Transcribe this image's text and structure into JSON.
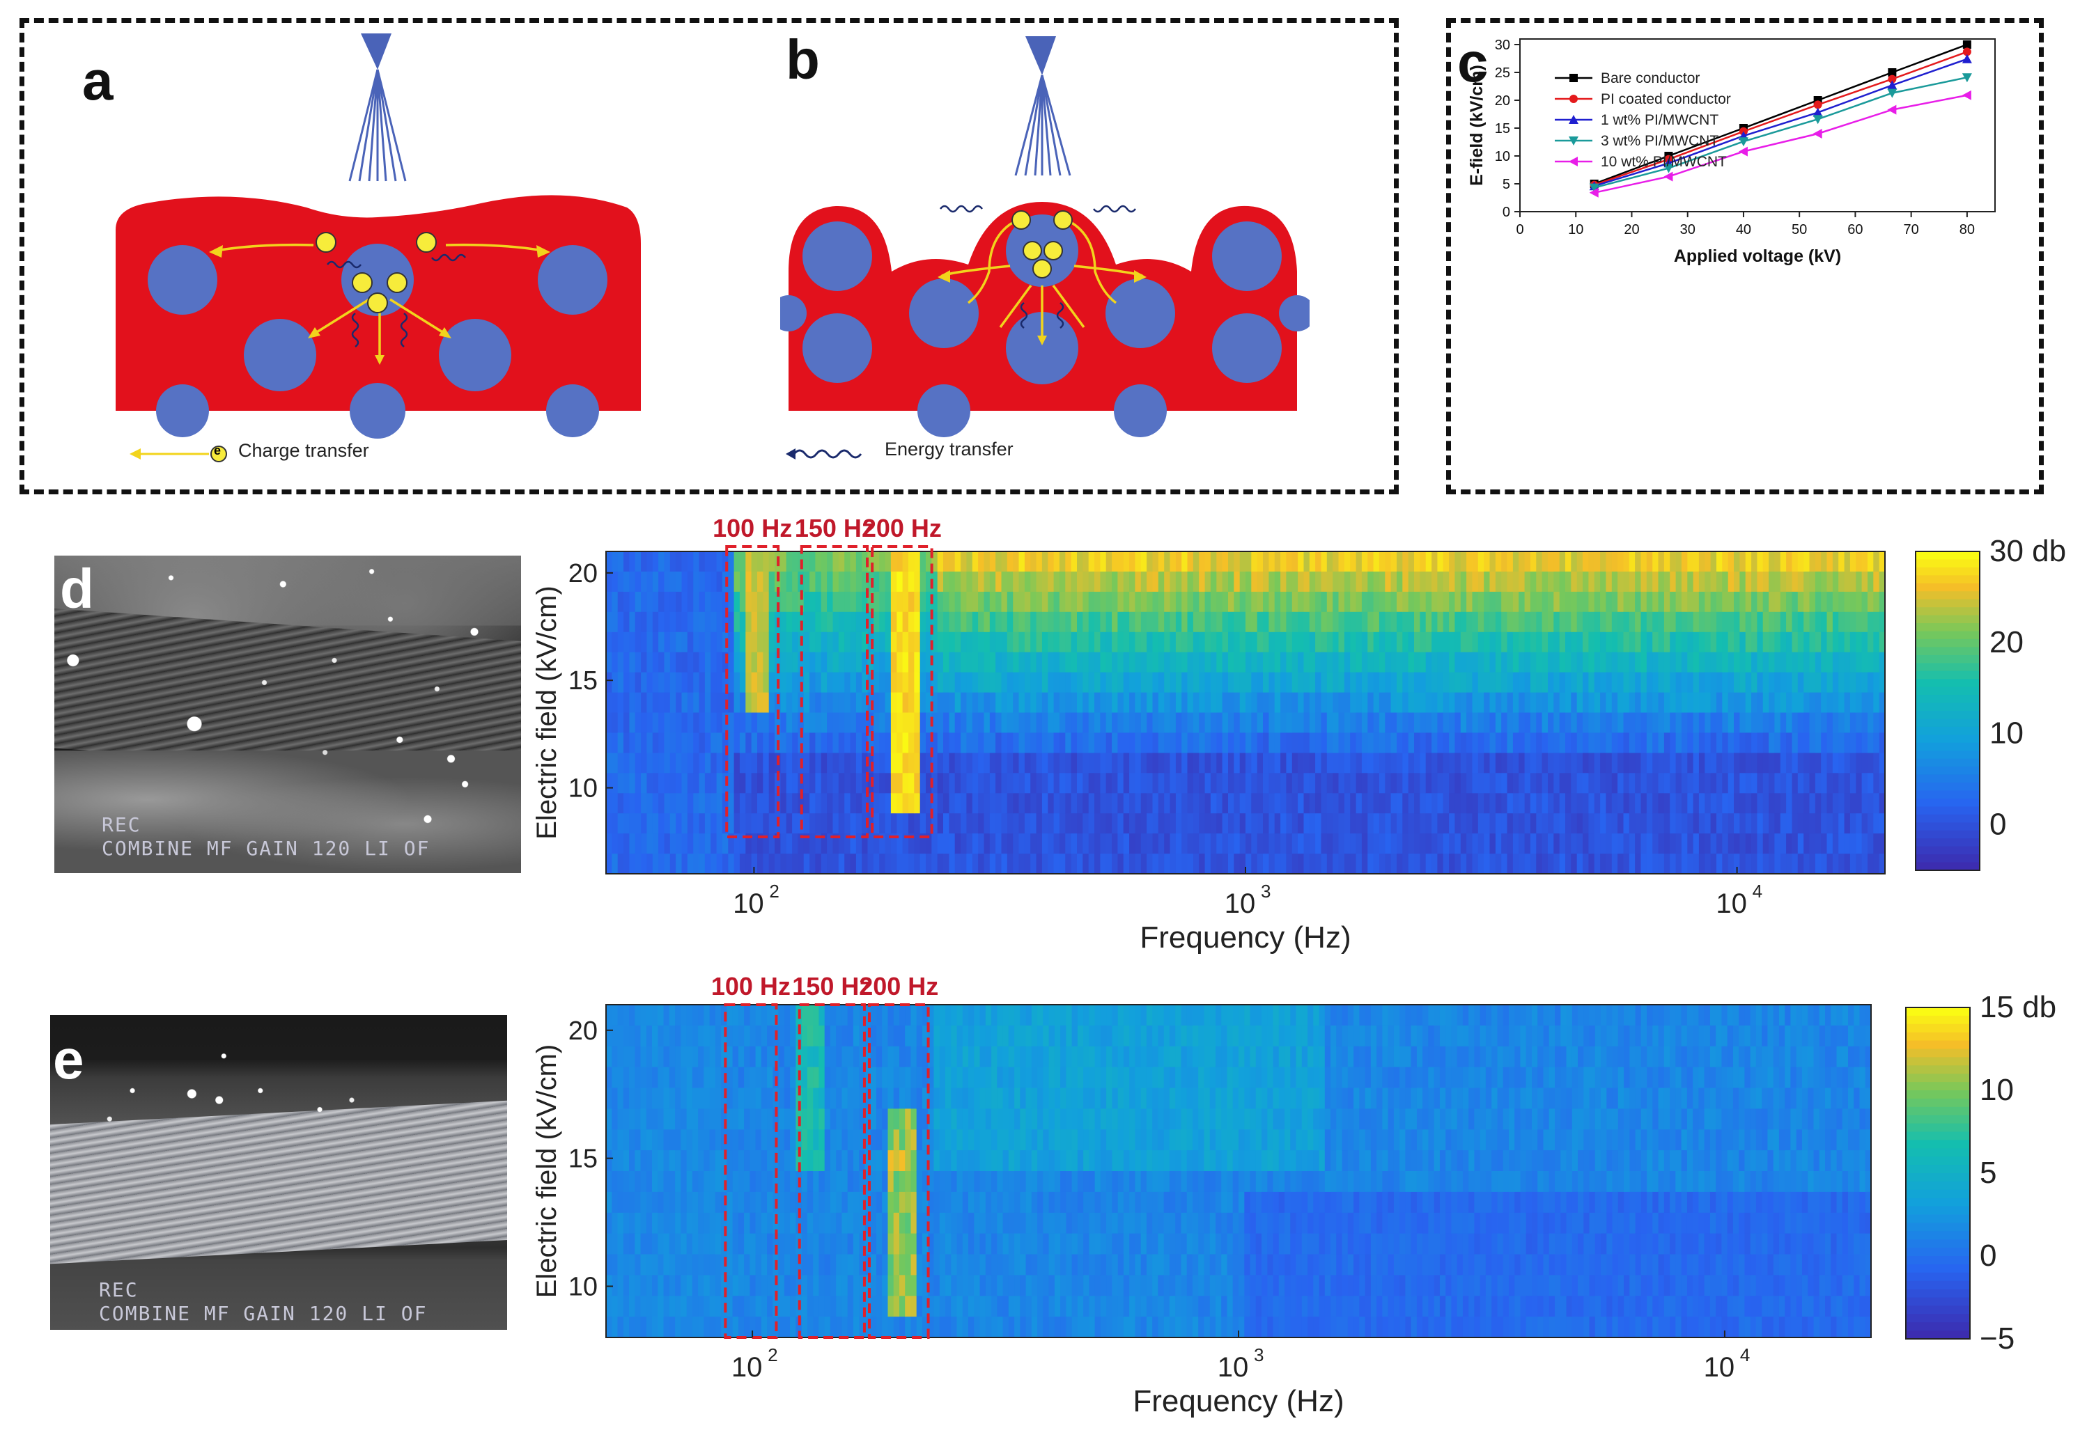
{
  "panels": {
    "a": {
      "letter": "a",
      "legend": "Charge transfer",
      "electron": "e"
    },
    "b": {
      "letter": "b",
      "legend": "Energy transfer",
      "electron": "e"
    },
    "c": {
      "letter": "c"
    },
    "d": {
      "letter": "d",
      "osd_line1": "REC",
      "osd_line2": "COMBINE MF GAIN 120 LI OF",
      "bands": [
        "100 Hz",
        "150 Hz",
        "200 Hz"
      ],
      "colorbar_ticks": [
        "30 db",
        "20",
        "10",
        "0"
      ],
      "xlabel": "Frequency (Hz)",
      "ylabel": "Electric field (kV/cm)",
      "yticks": [
        "20",
        "15",
        "10"
      ],
      "xticks": [
        "10",
        "10",
        "10"
      ],
      "xtick_exp": [
        "2",
        "3",
        "4"
      ]
    },
    "e": {
      "letter": "e",
      "osd_line1": "REC",
      "osd_line2": "COMBINE MF GAIN 120 LI OF",
      "bands": [
        "100 Hz",
        "150 Hz",
        "200 Hz"
      ],
      "colorbar_ticks": [
        "15 db",
        "10",
        "5",
        "0",
        "−5"
      ],
      "xlabel": "Frequency (Hz)",
      "ylabel": "Electric field (kV/cm)",
      "yticks": [
        "20",
        "15",
        "10"
      ],
      "xticks": [
        "10",
        "10",
        "10"
      ],
      "xtick_exp": [
        "2",
        "3",
        "4"
      ]
    }
  },
  "chart_data": [
    {
      "type": "line",
      "panel": "c",
      "title": "",
      "xlabel": "Applied voltage (kV)",
      "ylabel": "E-field (kV/cm)",
      "xlim": [
        0,
        85
      ],
      "ylim": [
        0,
        31
      ],
      "xticks": [
        0,
        10,
        20,
        30,
        40,
        50,
        60,
        70,
        80
      ],
      "yticks": [
        0,
        5,
        10,
        15,
        20,
        25,
        30
      ],
      "x": [
        13.3,
        26.6,
        40,
        53.3,
        66.6,
        80
      ],
      "series": [
        {
          "name": "Bare conductor",
          "color": "#000000",
          "marker": "square",
          "values": [
            5.0,
            10.0,
            15.0,
            20.0,
            25.0,
            30.0
          ]
        },
        {
          "name": "PI coated conductor",
          "color": "#e41a1c",
          "marker": "circle",
          "values": [
            4.8,
            9.4,
            14.4,
            19.2,
            23.8,
            28.7
          ]
        },
        {
          "name": "1 wt% PI/MWCNT",
          "color": "#1f1fcf",
          "marker": "triangle-up",
          "values": [
            4.6,
            8.7,
            13.6,
            17.8,
            22.7,
            27.4
          ]
        },
        {
          "name": "3 wt% PI/MWCNT",
          "color": "#1a9a9a",
          "marker": "triangle-down",
          "values": [
            4.3,
            7.8,
            12.6,
            16.6,
            21.3,
            24.1
          ]
        },
        {
          "name": "10 wt% PI/MWCNT",
          "color": "#e81de8",
          "marker": "triangle-left",
          "values": [
            3.4,
            6.3,
            10.8,
            14.0,
            18.3,
            20.9
          ]
        }
      ]
    },
    {
      "type": "heatmap",
      "panel": "d",
      "xlabel": "Frequency (Hz)",
      "ylabel": "Electric field (kV/cm)",
      "xscale": "log",
      "xlim": [
        50,
        20000
      ],
      "ylim": [
        6,
        21
      ],
      "colorbar_range": [
        -5,
        30
      ],
      "colorbar_unit": "db",
      "highlighted_bands_hz": [
        100,
        150,
        200
      ]
    },
    {
      "type": "heatmap",
      "panel": "e",
      "xlabel": "Frequency (Hz)",
      "ylabel": "Electric field (kV/cm)",
      "xscale": "log",
      "xlim": [
        50,
        20000
      ],
      "ylim": [
        8,
        21
      ],
      "colorbar_range": [
        -5,
        15
      ],
      "colorbar_unit": "db",
      "highlighted_bands_hz": [
        100,
        150,
        200
      ]
    }
  ]
}
